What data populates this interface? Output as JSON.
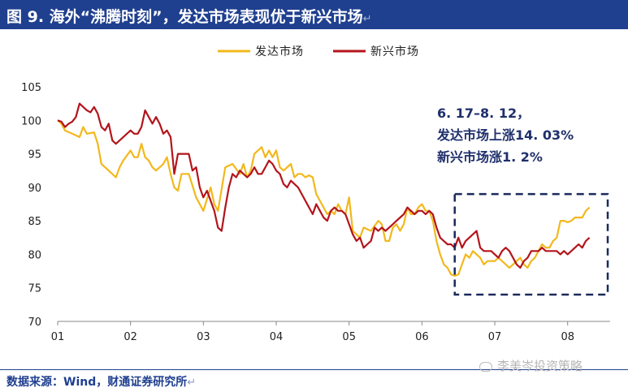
{
  "title": "图 9. 海外“沸腾时刻”，发达市场表现优于新兴市场",
  "source": "数据来源：Wind，财通证券研究所",
  "watermark": "李美岑投资策略",
  "return_mark": "↵",
  "colors": {
    "title_bg": "#1f3f8f",
    "developed": "#f2b81c",
    "emerging": "#b3141b",
    "annotation": "#1f2f6b",
    "box": "#1b2a5c"
  },
  "chart_data": {
    "type": "line",
    "title": "",
    "xlabel": "",
    "ylabel": "",
    "x_ticks": [
      "01",
      "02",
      "03",
      "04",
      "05",
      "06",
      "07",
      "08"
    ],
    "xlim": [
      1,
      8.36
    ],
    "ylim": [
      70,
      105
    ],
    "y_ticks": [
      70,
      75,
      80,
      85,
      90,
      95,
      100,
      105
    ],
    "legend_position": "top-center",
    "series": [
      {
        "name": "发达市场",
        "color": "#f2b81c",
        "x": [
          1.0,
          1.05,
          1.1,
          1.2,
          1.3,
          1.35,
          1.4,
          1.5,
          1.55,
          1.6,
          1.65,
          1.7,
          1.8,
          1.85,
          1.9,
          2.0,
          2.05,
          2.1,
          2.15,
          2.2,
          2.25,
          2.3,
          2.35,
          2.45,
          2.5,
          2.55,
          2.6,
          2.65,
          2.7,
          2.8,
          2.9,
          3.0,
          3.1,
          3.15,
          3.2,
          3.3,
          3.4,
          3.5,
          3.55,
          3.6,
          3.65,
          3.7,
          3.8,
          3.85,
          3.9,
          3.95,
          4.0,
          4.05,
          4.1,
          4.15,
          4.2,
          4.25,
          4.3,
          4.35,
          4.4,
          4.45,
          4.5,
          4.55,
          4.6,
          4.7,
          4.75,
          4.8,
          4.85,
          4.9,
          4.95,
          5.0,
          5.05,
          5.1,
          5.15,
          5.2,
          5.3,
          5.4,
          5.45,
          5.5,
          5.55,
          5.6,
          5.65,
          5.7,
          5.75,
          5.8,
          5.85,
          5.9,
          5.95,
          6.0,
          6.05,
          6.1,
          6.15,
          6.2,
          6.25,
          6.3,
          6.35,
          6.4,
          6.45,
          6.5,
          6.55,
          6.6,
          6.65,
          6.7,
          6.75,
          6.8,
          6.85,
          6.9,
          6.95,
          7.0,
          7.05,
          7.1,
          7.15,
          7.2,
          7.25,
          7.3,
          7.35,
          7.4,
          7.45,
          7.5,
          7.55,
          7.6,
          7.65,
          7.7,
          7.75,
          7.8,
          7.85,
          7.9,
          7.95,
          8.0,
          8.05,
          8.1,
          8.15,
          8.2,
          8.25,
          8.3
        ],
        "values": [
          100.0,
          99.5,
          98.5,
          98.0,
          97.5,
          99.0,
          98.0,
          98.2,
          96.5,
          93.5,
          93.0,
          92.5,
          91.5,
          93.0,
          94.0,
          95.5,
          94.5,
          94.5,
          96.5,
          94.5,
          94.0,
          93.0,
          92.5,
          93.5,
          94.5,
          92.0,
          90.0,
          89.5,
          92.0,
          92.0,
          88.5,
          86.5,
          90.0,
          87.5,
          86.5,
          93.0,
          93.5,
          92.0,
          93.5,
          91.5,
          92.5,
          95.0,
          96.0,
          94.5,
          95.5,
          94.5,
          95.5,
          93.0,
          92.5,
          93.0,
          93.5,
          91.5,
          92.0,
          92.0,
          91.5,
          91.8,
          91.5,
          89.0,
          88.0,
          86.0,
          86.5,
          86.0,
          87.5,
          86.5,
          86.0,
          88.5,
          83.5,
          83.0,
          82.5,
          84.0,
          83.5,
          85.0,
          84.5,
          82.0,
          82.0,
          84.0,
          84.5,
          83.5,
          84.5,
          87.0,
          86.0,
          86.0,
          87.0,
          87.5,
          86.5,
          86.5,
          85.0,
          82.0,
          80.0,
          78.5,
          78.0,
          77.0,
          76.8,
          77.0,
          78.5,
          80.0,
          79.5,
          80.5,
          80.0,
          79.5,
          78.5,
          79.0,
          79.0,
          79.0,
          79.5,
          79.0,
          78.5,
          78.0,
          78.5,
          79.0,
          79.5,
          78.5,
          78.0,
          79.0,
          79.5,
          80.5,
          81.5,
          81.0,
          81.0,
          82.0,
          82.5,
          85.0,
          85.0,
          84.8,
          85.0,
          85.5,
          85.5,
          85.5,
          86.5,
          87.0
        ]
      },
      {
        "name": "新兴市场",
        "color": "#b3141b",
        "x": [
          1.0,
          1.05,
          1.1,
          1.15,
          1.2,
          1.25,
          1.3,
          1.35,
          1.4,
          1.45,
          1.5,
          1.55,
          1.6,
          1.65,
          1.7,
          1.75,
          1.8,
          1.85,
          1.9,
          1.95,
          2.0,
          2.05,
          2.1,
          2.15,
          2.2,
          2.25,
          2.3,
          2.35,
          2.4,
          2.45,
          2.5,
          2.55,
          2.6,
          2.65,
          2.7,
          2.8,
          2.85,
          2.9,
          2.95,
          3.0,
          3.05,
          3.1,
          3.15,
          3.2,
          3.25,
          3.3,
          3.35,
          3.4,
          3.45,
          3.5,
          3.55,
          3.6,
          3.65,
          3.7,
          3.75,
          3.8,
          3.85,
          3.9,
          3.95,
          4.0,
          4.05,
          4.1,
          4.15,
          4.2,
          4.25,
          4.3,
          4.35,
          4.4,
          4.45,
          4.5,
          4.55,
          4.6,
          4.65,
          4.7,
          4.75,
          4.8,
          4.85,
          4.9,
          4.95,
          5.0,
          5.05,
          5.1,
          5.15,
          5.2,
          5.25,
          5.3,
          5.35,
          5.4,
          5.45,
          5.5,
          5.55,
          5.6,
          5.65,
          5.7,
          5.75,
          5.8,
          5.85,
          5.9,
          5.95,
          6.0,
          6.05,
          6.1,
          6.15,
          6.2,
          6.25,
          6.3,
          6.35,
          6.4,
          6.45,
          6.5,
          6.55,
          6.6,
          6.65,
          6.7,
          6.75,
          6.8,
          6.85,
          6.9,
          6.95,
          7.0,
          7.05,
          7.1,
          7.15,
          7.2,
          7.25,
          7.3,
          7.35,
          7.4,
          7.45,
          7.5,
          7.55,
          7.6,
          7.65,
          7.7,
          7.75,
          7.8,
          7.85,
          7.9,
          7.95,
          8.0,
          8.05,
          8.1,
          8.15,
          8.2,
          8.25,
          8.3
        ],
        "values": [
          100.0,
          99.8,
          99.0,
          99.5,
          99.8,
          100.5,
          102.5,
          102.0,
          101.5,
          101.2,
          102.0,
          101.0,
          99.0,
          98.5,
          99.5,
          97.0,
          96.5,
          97.0,
          97.5,
          98.0,
          98.5,
          98.0,
          98.0,
          99.0,
          101.5,
          100.5,
          99.5,
          100.5,
          99.5,
          98.0,
          98.5,
          97.5,
          92.0,
          95.0,
          95.0,
          95.0,
          92.5,
          93.0,
          90.0,
          88.5,
          89.5,
          88.0,
          86.5,
          84.0,
          83.5,
          87.0,
          90.0,
          92.0,
          91.5,
          92.5,
          92.0,
          91.5,
          92.0,
          93.0,
          92.0,
          92.0,
          93.0,
          94.0,
          93.5,
          92.5,
          92.0,
          90.5,
          90.0,
          91.0,
          90.5,
          90.0,
          89.0,
          88.0,
          87.0,
          86.0,
          87.5,
          86.5,
          85.5,
          85.0,
          86.5,
          87.0,
          86.5,
          86.5,
          86.0,
          84.5,
          83.0,
          82.0,
          82.5,
          81.0,
          81.5,
          82.0,
          84.0,
          83.5,
          84.0,
          83.5,
          84.0,
          84.5,
          85.0,
          85.5,
          86.0,
          87.0,
          86.5,
          86.0,
          86.5,
          86.5,
          86.0,
          86.5,
          86.0,
          84.0,
          82.5,
          82.0,
          81.5,
          81.5,
          81.0,
          82.5,
          81.0,
          82.0,
          82.5,
          83.0,
          83.5,
          81.0,
          80.5,
          80.5,
          80.5,
          80.0,
          79.5,
          80.5,
          81.0,
          80.5,
          79.5,
          78.5,
          78.0,
          79.0,
          79.5,
          80.5,
          80.5,
          80.5,
          81.0,
          80.5,
          80.5,
          80.5,
          80.5,
          80.0,
          80.5,
          80.0,
          80.5,
          81.0,
          81.5,
          81.0,
          82.0,
          82.5
        ]
      }
    ],
    "annotation": {
      "lines": [
        "6. 17–8. 12，",
        "发达市场上涨14. 03%",
        "新兴市场涨1. 2%"
      ],
      "box_x_range": [
        6.45,
        8.55
      ],
      "box_y_range": [
        74,
        89
      ]
    }
  }
}
